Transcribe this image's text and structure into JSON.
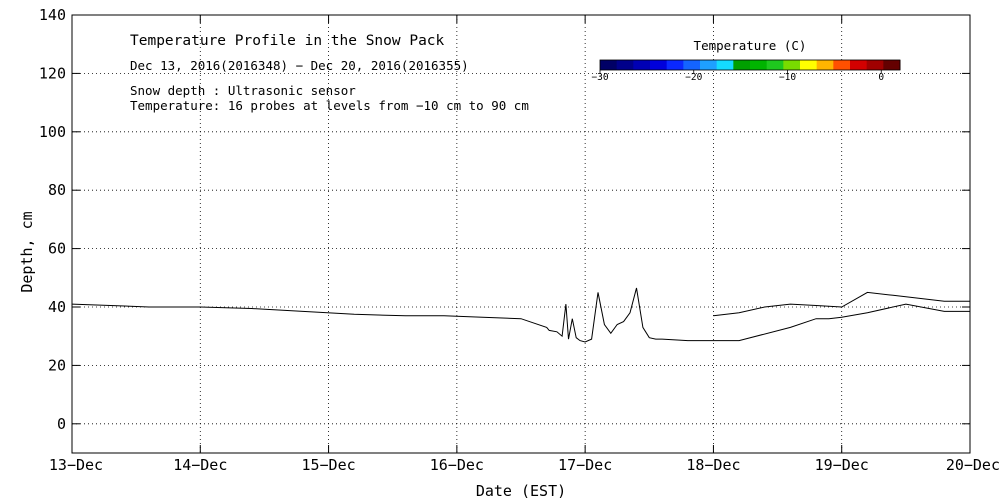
{
  "chart_data": {
    "type": "line",
    "title": "Temperature Profile in the Snow Pack",
    "subtitle": "Dec 13, 2016(2016348) − Dec 20, 2016(2016355)",
    "notes": [
      "Snow depth : Ultrasonic sensor",
      "Temperature: 16 probes at levels from −10 cm to 90 cm"
    ],
    "xlabel": "Date (EST)",
    "ylabel": "Depth, cm",
    "x_tick_labels": [
      "13−Dec",
      "14−Dec",
      "15−Dec",
      "16−Dec",
      "17−Dec",
      "18−Dec",
      "19−Dec",
      "20−Dec"
    ],
    "xlim_days": [
      0,
      7
    ],
    "ylim": [
      -10,
      140
    ],
    "y_ticks": [
      0,
      20,
      40,
      60,
      80,
      100,
      120,
      140
    ],
    "grid": true,
    "series": [
      {
        "x_days": [
          0.0,
          0.3,
          0.6,
          1.0,
          1.4,
          1.8,
          2.2,
          2.6,
          2.9,
          3.2,
          3.5,
          3.7,
          3.72,
          3.78,
          3.82,
          3.85,
          3.87,
          3.9,
          3.93,
          3.96,
          4.0,
          4.05,
          4.1,
          4.15,
          4.2,
          4.25,
          4.3,
          4.35,
          4.4,
          4.45,
          4.5,
          4.55,
          4.6,
          4.8,
          5.0,
          5.2,
          5.6,
          5.8,
          5.9,
          6.0,
          6.2,
          6.5,
          6.8,
          7.0
        ],
        "values": [
          41,
          40.5,
          40,
          40,
          39.5,
          38.5,
          37.5,
          37,
          37,
          36.5,
          36,
          33,
          32,
          31.5,
          30,
          41,
          29,
          36,
          29.5,
          28.5,
          28,
          29,
          45,
          34,
          31,
          34,
          35,
          38,
          46.5,
          33,
          29.5,
          29,
          29,
          28.5,
          28.5,
          28.5,
          33,
          36,
          36,
          36.5,
          38,
          41,
          38.5,
          38.5
        ]
      },
      {
        "x_days": [
          5.0,
          5.2,
          5.4,
          5.6,
          5.8,
          6.0,
          6.2,
          6.4,
          6.6,
          6.8,
          7.0
        ],
        "values": [
          37,
          38,
          40,
          41,
          40.5,
          40,
          45,
          44,
          43,
          42,
          42
        ]
      }
    ],
    "colorbar": {
      "label": "Temperature (C)",
      "tick_labels": [
        "−30",
        "−20",
        "−10",
        "0"
      ],
      "range": [
        -30,
        2
      ],
      "colors": [
        "#000066",
        "#00008b",
        "#0000b4",
        "#0000dc",
        "#0a28ff",
        "#1464ff",
        "#1ea0ff",
        "#14dcff",
        "#00a000",
        "#00b400",
        "#1ec81e",
        "#78dc00",
        "#ffff00",
        "#ffb400",
        "#ff5000",
        "#d20000",
        "#a00000",
        "#640000"
      ]
    }
  }
}
